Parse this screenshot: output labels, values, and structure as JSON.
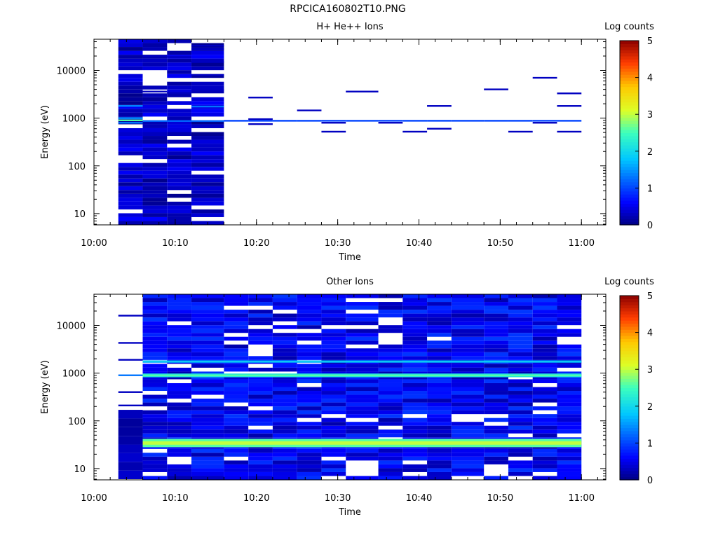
{
  "title": "RPCICA160802T10.PNG",
  "chart_data": [
    {
      "type": "heatmap",
      "subtitle": "H+ He++ Ions",
      "xlabel": "Time",
      "ylabel": "Energy (eV)",
      "colorbar_label": "Log counts",
      "xlim": [
        "10:00",
        "11:03"
      ],
      "ylim": [
        5.8,
        45000
      ],
      "yscale": "log",
      "xticks": [
        "10:00",
        "10:10",
        "10:20",
        "10:30",
        "10:40",
        "10:50",
        "11:00"
      ],
      "yticks": [
        "10",
        "100",
        "1000",
        "10000"
      ],
      "colorbar_range": [
        0,
        5
      ],
      "colorbar_ticks": [
        "0",
        "1",
        "2",
        "3",
        "4",
        "5"
      ],
      "columns": [
        {
          "start": "10:03",
          "end": "10:06",
          "dense": true,
          "lines": [
            {
              "e": 1800,
              "v": 1.4
            },
            {
              "e": 900,
              "v": 2.6
            },
            {
              "e": 1000,
              "v": 1.5
            },
            {
              "e": 800,
              "v": 1.3
            }
          ]
        },
        {
          "start": "10:06",
          "end": "10:09",
          "dense": true,
          "lines": [
            {
              "e": 20000,
              "v": 0.3
            },
            {
              "e": 3600,
              "v": 0.3
            },
            {
              "e": 870,
              "v": 1.2
            }
          ]
        },
        {
          "start": "10:09",
          "end": "10:12",
          "dense": true,
          "lines": [
            {
              "e": 19000,
              "v": 0.3
            },
            {
              "e": 3400,
              "v": 0.3
            },
            {
              "e": 870,
              "v": 1.2
            }
          ]
        },
        {
          "start": "10:12",
          "end": "10:16",
          "dense": true,
          "lines": [
            {
              "e": 33000,
              "v": 0.3
            },
            {
              "e": 28000,
              "v": 0.3
            },
            {
              "e": 15000,
              "v": 0.3
            },
            {
              "e": 8000,
              "v": 0.3
            },
            {
              "e": 3900,
              "v": 0.3
            },
            {
              "e": 1750,
              "v": 1.3
            },
            {
              "e": 870,
              "v": 1.2
            }
          ]
        },
        {
          "start": "10:16",
          "end": "10:19",
          "dense": false,
          "lines": [
            {
              "e": 880,
              "v": 1.0
            }
          ]
        },
        {
          "start": "10:19",
          "end": "10:22",
          "dense": false,
          "lines": [
            {
              "e": 2700,
              "v": 0.3
            },
            {
              "e": 950,
              "v": 0.3
            },
            {
              "e": 880,
              "v": 1.0
            },
            {
              "e": 750,
              "v": 0.3
            }
          ]
        },
        {
          "start": "10:22",
          "end": "10:25",
          "dense": false,
          "lines": [
            {
              "e": 880,
              "v": 1.0
            }
          ]
        },
        {
          "start": "10:25",
          "end": "10:28",
          "dense": false,
          "lines": [
            {
              "e": 1450,
              "v": 0.3
            },
            {
              "e": 880,
              "v": 1.0
            }
          ]
        },
        {
          "start": "10:28",
          "end": "10:31",
          "dense": false,
          "lines": [
            {
              "e": 880,
              "v": 1.0
            },
            {
              "e": 800,
              "v": 0.3
            },
            {
              "e": 520,
              "v": 0.3
            }
          ]
        },
        {
          "start": "10:31",
          "end": "10:35",
          "dense": false,
          "lines": [
            {
              "e": 3600,
              "v": 0.3
            },
            {
              "e": 880,
              "v": 1.0
            }
          ]
        },
        {
          "start": "10:35",
          "end": "10:38",
          "dense": false,
          "lines": [
            {
              "e": 880,
              "v": 1.0
            },
            {
              "e": 800,
              "v": 0.3
            }
          ]
        },
        {
          "start": "10:38",
          "end": "10:41",
          "dense": false,
          "lines": [
            {
              "e": 880,
              "v": 1.0
            },
            {
              "e": 520,
              "v": 0.3
            }
          ]
        },
        {
          "start": "10:41",
          "end": "10:44",
          "dense": false,
          "lines": [
            {
              "e": 1800,
              "v": 0.3
            },
            {
              "e": 880,
              "v": 1.0
            },
            {
              "e": 600,
              "v": 0.3
            }
          ]
        },
        {
          "start": "10:44",
          "end": "10:48",
          "dense": false,
          "lines": [
            {
              "e": 880,
              "v": 1.0
            }
          ]
        },
        {
          "start": "10:48",
          "end": "10:51",
          "dense": false,
          "lines": [
            {
              "e": 4000,
              "v": 0.3
            },
            {
              "e": 880,
              "v": 1.0
            }
          ]
        },
        {
          "start": "10:51",
          "end": "10:54",
          "dense": false,
          "lines": [
            {
              "e": 880,
              "v": 1.0
            },
            {
              "e": 520,
              "v": 0.3
            }
          ]
        },
        {
          "start": "10:54",
          "end": "10:57",
          "dense": false,
          "lines": [
            {
              "e": 7000,
              "v": 0.3
            },
            {
              "e": 880,
              "v": 1.0
            },
            {
              "e": 800,
              "v": 0.3
            }
          ]
        },
        {
          "start": "10:57",
          "end": "11:00",
          "dense": false,
          "lines": [
            {
              "e": 3300,
              "v": 0.3
            },
            {
              "e": 1800,
              "v": 0.3
            },
            {
              "e": 880,
              "v": 1.0
            },
            {
              "e": 520,
              "v": 0.3
            }
          ]
        }
      ]
    },
    {
      "type": "heatmap",
      "subtitle": "Other Ions",
      "xlabel": "Time",
      "ylabel": "Energy (eV)",
      "colorbar_label": "Log counts",
      "xlim": [
        "10:00",
        "11:03"
      ],
      "ylim": [
        5.8,
        45000
      ],
      "yscale": "log",
      "xticks": [
        "10:00",
        "10:10",
        "10:20",
        "10:30",
        "10:40",
        "10:50",
        "11:00"
      ],
      "yticks": [
        "10",
        "100",
        "1000",
        "10000"
      ],
      "colorbar_range": [
        0,
        5
      ],
      "colorbar_ticks": [
        "0",
        "1",
        "2",
        "3",
        "4",
        "5"
      ],
      "bands": [
        {
          "energy_range": [
            28,
            42
          ],
          "v": 2.6
        },
        {
          "energy_range": [
            820,
            980
          ],
          "v": 2.2
        },
        {
          "energy_range": [
            1650,
            1850
          ],
          "v": 1.6
        }
      ],
      "columns": [
        {
          "start": "10:03",
          "end": "10:06",
          "dense": false,
          "lines": [
            {
              "e": 16000,
              "v": 0.3
            },
            {
              "e": 4300,
              "v": 0.3
            },
            {
              "e": 1900,
              "v": 0.3
            },
            {
              "e": 900,
              "v": 1.3
            },
            {
              "e": 400,
              "v": 0.3
            },
            {
              "e": 210,
              "v": 0.3
            }
          ],
          "low_block": [
            6,
            170
          ]
        },
        {
          "start": "10:06",
          "end": "10:09",
          "dense": true
        },
        {
          "start": "10:09",
          "end": "10:12",
          "dense": true,
          "gap": [
            12,
            16
          ]
        },
        {
          "start": "10:12",
          "end": "10:16",
          "dense": true
        },
        {
          "start": "10:16",
          "end": "10:19",
          "dense": true,
          "gap": [
            13,
            16
          ]
        },
        {
          "start": "10:19",
          "end": "10:22",
          "dense": true
        },
        {
          "start": "10:22",
          "end": "10:25",
          "dense": true
        },
        {
          "start": "10:25",
          "end": "10:28",
          "dense": true
        },
        {
          "start": "10:28",
          "end": "10:31",
          "dense": true,
          "gap": [
            13,
            16
          ]
        },
        {
          "start": "10:31",
          "end": "10:35",
          "dense": true,
          "gap": [
            6,
            14
          ],
          "gap2": [
            85,
            100
          ]
        },
        {
          "start": "10:35",
          "end": "10:38",
          "dense": true
        },
        {
          "start": "10:38",
          "end": "10:41",
          "dense": true
        },
        {
          "start": "10:41",
          "end": "10:44",
          "dense": true
        },
        {
          "start": "10:44",
          "end": "10:48",
          "dense": true
        },
        {
          "start": "10:48",
          "end": "10:51",
          "dense": true,
          "gap": [
            6,
            11
          ]
        },
        {
          "start": "10:51",
          "end": "10:54",
          "dense": true,
          "gap": [
            13,
            16
          ]
        },
        {
          "start": "10:54",
          "end": "10:57",
          "dense": true
        },
        {
          "start": "10:57",
          "end": "11:00",
          "dense": true
        }
      ]
    }
  ]
}
